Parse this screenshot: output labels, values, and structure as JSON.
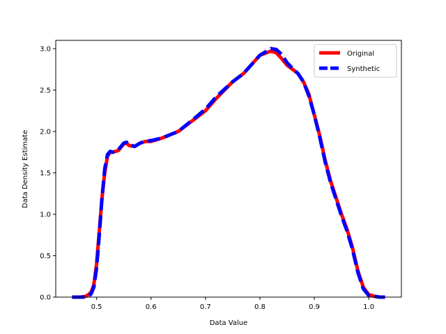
{
  "chart_data": {
    "type": "line",
    "title": "",
    "xlabel": "Data Value",
    "ylabel": "Data Density Estimate",
    "xlim": [
      0.425,
      1.06
    ],
    "ylim": [
      0,
      3.1
    ],
    "xticks": [
      0.5,
      0.6,
      0.7,
      0.8,
      0.9,
      1.0
    ],
    "xtick_labels": [
      "0.5",
      "0.6",
      "0.7",
      "0.8",
      "0.9",
      "1.0"
    ],
    "yticks": [
      0.0,
      0.5,
      1.0,
      1.5,
      2.0,
      2.5,
      3.0
    ],
    "ytick_labels": [
      "0.0",
      "0.5",
      "1.0",
      "1.5",
      "2.0",
      "2.5",
      "3.0"
    ],
    "grid": false,
    "legend_position": "top-right",
    "series": [
      {
        "name": "Original",
        "color": "#ff0000",
        "style": "solid",
        "x": [
          0.455,
          0.47,
          0.48,
          0.485,
          0.49,
          0.495,
          0.5,
          0.505,
          0.51,
          0.515,
          0.52,
          0.525,
          0.53,
          0.54,
          0.55,
          0.555,
          0.56,
          0.57,
          0.58,
          0.59,
          0.6,
          0.62,
          0.65,
          0.68,
          0.7,
          0.72,
          0.75,
          0.77,
          0.8,
          0.82,
          0.83,
          0.84,
          0.85,
          0.86,
          0.87,
          0.88,
          0.89,
          0.9,
          0.91,
          0.92,
          0.93,
          0.94,
          0.95,
          0.96,
          0.97,
          0.98,
          0.99,
          1.0,
          1.01,
          1.02,
          1.03
        ],
        "y": [
          0.0,
          0.0,
          0.01,
          0.03,
          0.06,
          0.15,
          0.4,
          0.8,
          1.2,
          1.5,
          1.7,
          1.75,
          1.75,
          1.77,
          1.85,
          1.86,
          1.83,
          1.82,
          1.86,
          1.88,
          1.88,
          1.92,
          2.0,
          2.15,
          2.25,
          2.4,
          2.6,
          2.7,
          2.92,
          2.97,
          2.95,
          2.88,
          2.8,
          2.75,
          2.7,
          2.6,
          2.45,
          2.2,
          1.95,
          1.65,
          1.4,
          1.2,
          1.0,
          0.82,
          0.6,
          0.32,
          0.12,
          0.03,
          0.01,
          0.0,
          0.0
        ]
      },
      {
        "name": "Synthetic",
        "color": "#0000ff",
        "style": "dashed",
        "x": [
          0.455,
          0.47,
          0.48,
          0.485,
          0.49,
          0.495,
          0.5,
          0.505,
          0.51,
          0.515,
          0.52,
          0.525,
          0.53,
          0.54,
          0.55,
          0.555,
          0.56,
          0.57,
          0.58,
          0.59,
          0.6,
          0.62,
          0.65,
          0.68,
          0.7,
          0.72,
          0.75,
          0.77,
          0.8,
          0.82,
          0.83,
          0.84,
          0.85,
          0.86,
          0.87,
          0.88,
          0.89,
          0.9,
          0.91,
          0.92,
          0.93,
          0.94,
          0.95,
          0.96,
          0.97,
          0.98,
          0.99,
          1.0,
          1.01,
          1.02,
          1.03
        ],
        "y": [
          0.0,
          0.0,
          0.0,
          0.01,
          0.04,
          0.12,
          0.35,
          0.75,
          1.2,
          1.55,
          1.72,
          1.76,
          1.75,
          1.78,
          1.86,
          1.87,
          1.84,
          1.82,
          1.86,
          1.88,
          1.89,
          1.92,
          2.0,
          2.16,
          2.27,
          2.42,
          2.6,
          2.7,
          2.92,
          3.0,
          2.99,
          2.93,
          2.83,
          2.76,
          2.7,
          2.6,
          2.43,
          2.2,
          1.93,
          1.63,
          1.38,
          1.18,
          0.98,
          0.8,
          0.58,
          0.3,
          0.1,
          0.02,
          0.01,
          0.0,
          0.0
        ]
      }
    ]
  }
}
